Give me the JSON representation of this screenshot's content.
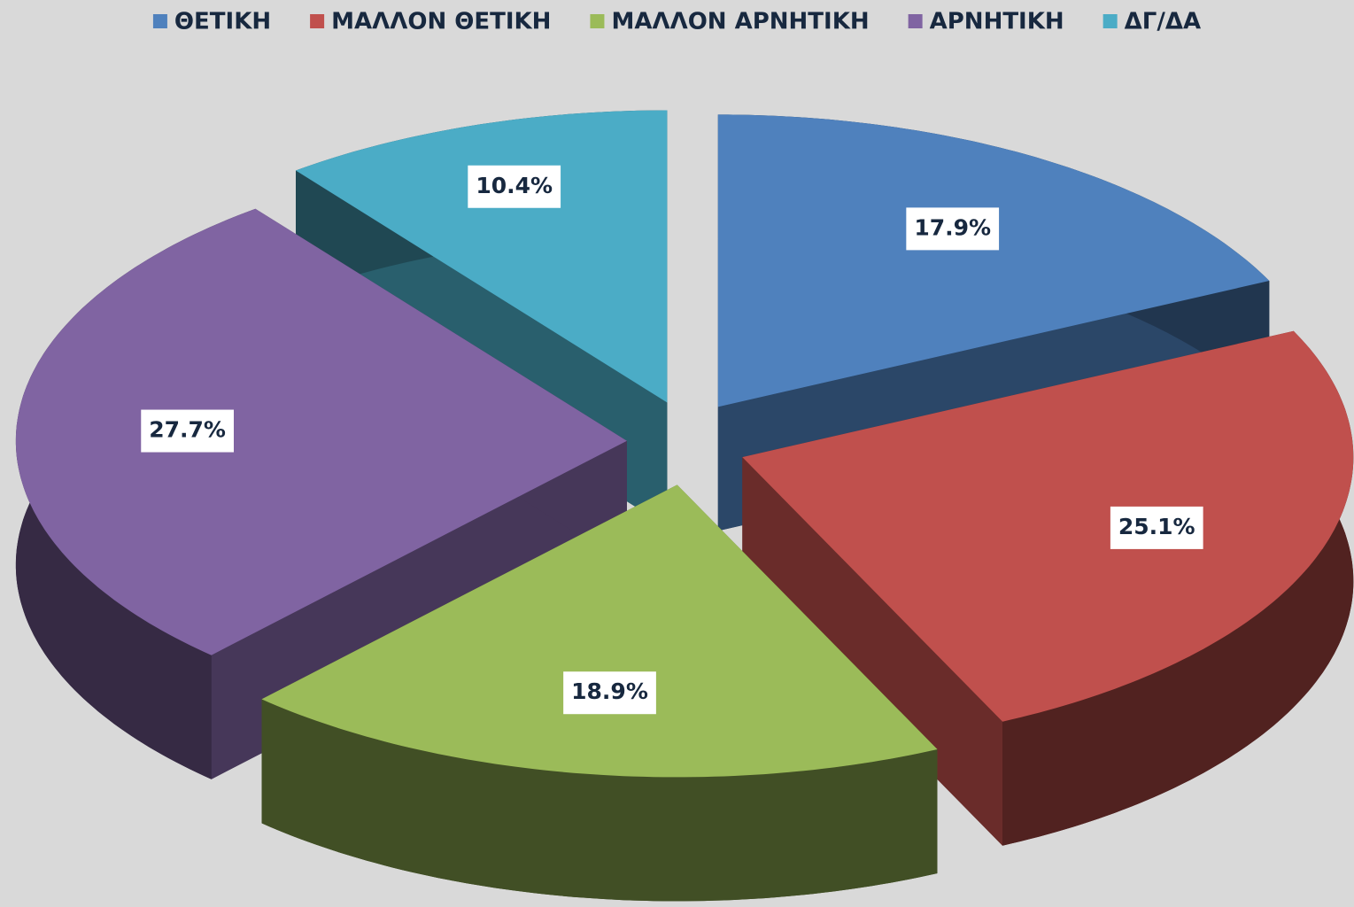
{
  "chart_data": {
    "type": "pie",
    "categories": [
      "ΘΕΤΙΚΗ",
      "ΜΑΛΛΟΝ ΘΕΤΙΚΗ",
      "ΜΑΛΛΟΝ ΑΡΝΗΤΙΚΗ",
      "ΑΡΝΗΤΙΚΗ",
      "ΔΓ/ΔΑ"
    ],
    "values": [
      17.9,
      25.1,
      18.9,
      27.7,
      10.4
    ],
    "value_labels": [
      "17.9%",
      "25.1%",
      "18.9%",
      "27.7%",
      "10.4%"
    ],
    "colors": [
      "#4f81bd",
      "#c0504d",
      "#9bbb59",
      "#8064a2",
      "#4bacc6"
    ],
    "legend": "top"
  }
}
